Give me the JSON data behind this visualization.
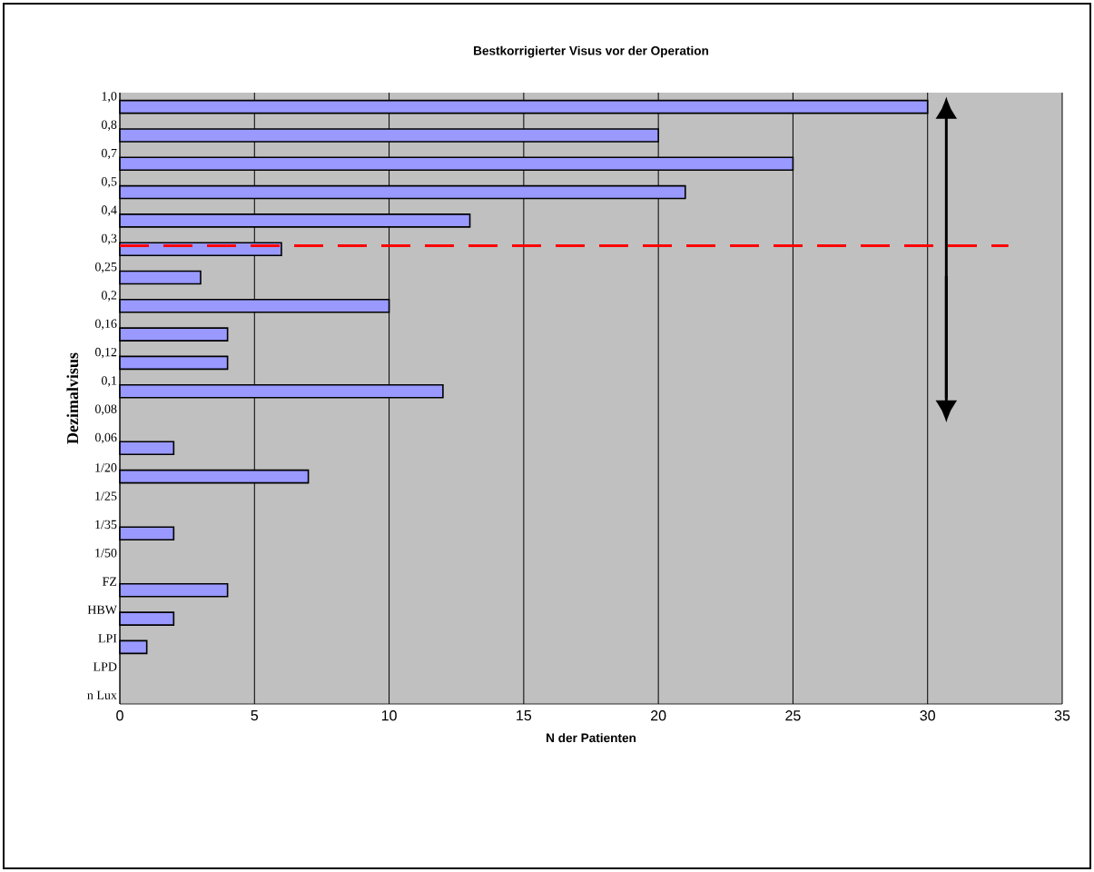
{
  "chart_data": {
    "type": "bar",
    "orientation": "horizontal",
    "title": "Bestkorrigierter Visus vor der Operation",
    "xlabel": "N der Patienten",
    "ylabel": "Dezimalvisus",
    "categories": [
      "1,0",
      "0,8",
      "0,7",
      "0,5",
      "0,4",
      "0,3",
      "0,25",
      "0,2",
      "0,16",
      "0,12",
      "0,1",
      "0,08",
      "0,06",
      "1/20",
      "1/25",
      "1/35",
      "1/50",
      "FZ",
      "HBW",
      "LPI",
      "LPD",
      "n Lux"
    ],
    "values": [
      30,
      20,
      25,
      21,
      13,
      6,
      3,
      10,
      4,
      4,
      12,
      null,
      2,
      7,
      null,
      2,
      null,
      4,
      2,
      1,
      null,
      null
    ],
    "color": "#9999ff",
    "xlim": [
      0,
      35
    ],
    "xticks": [
      0,
      5,
      10,
      15,
      20,
      25,
      30,
      35
    ],
    "grid": "x",
    "ref_lines": [
      {
        "axis": "y",
        "value": "0,3",
        "color": "#ff0000",
        "line_style": "dashed"
      }
    ]
  }
}
